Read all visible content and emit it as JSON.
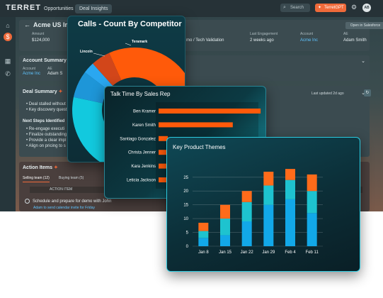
{
  "app": {
    "logo": "TERRET",
    "tabs": [
      "Opportunities",
      "Deal Insights"
    ],
    "search_label": "Search",
    "gpt_label": "TerretGPT",
    "avatar_initials": "AB"
  },
  "account": {
    "title": "Acme US Inc N",
    "fields": [
      {
        "label": "Amount",
        "value": "$124,000"
      },
      {
        "label": "Last Engagement",
        "value": "2 weeks ago"
      },
      {
        "label": "Account",
        "value": "Acme Inc"
      },
      {
        "label": "AE",
        "value": "Adam Smith"
      }
    ],
    "stage_fragment": "mo / Tech Validation",
    "open_salesforce": "Open in Salesforce"
  },
  "account_summary": {
    "title": "Account Summary",
    "labels": [
      "Account",
      "AE"
    ],
    "values": [
      "Acme Inc",
      "Adam S"
    ]
  },
  "deal_summary": {
    "title": "Deal Summary",
    "bullets": [
      "Deal stalled without",
      "Key discovery quest"
    ],
    "next_steps_title": "Next Steps Identified",
    "next_steps": [
      "Re-engage executi",
      "Finalize outstanding",
      "Provide a clear impl",
      "Align on pricing to s"
    ],
    "updated": "Last updated 2d ago"
  },
  "action_items": {
    "title": "Action Items",
    "tabs": [
      "Selling team (12)",
      "Buying team (5)"
    ],
    "column": "ACTION ITEM",
    "rows": [
      {
        "text": "Schedule and prepare for demo with John",
        "sub": "Adam to send calendar invite for Friday"
      }
    ]
  },
  "colors": {
    "orange": "#ff5a0a",
    "orange_dark": "#d2461a",
    "cyan": "#12c9de",
    "blue": "#0e7fd1",
    "light_blue": "#2aa7f0",
    "teal_mid": "#1db5c8"
  },
  "chart_data": [
    {
      "type": "pie",
      "title": "Calls - Count By Competitor",
      "labels": [
        "Teramark",
        "Lincoln",
        "",
        "",
        ""
      ],
      "values": [
        44,
        41,
        7,
        3,
        5
      ],
      "colors": [
        "#ff5a0a",
        "#12c9de",
        "#1e96d8",
        "#2aa7f0",
        "#d2461a"
      ],
      "donut": true
    },
    {
      "type": "bar",
      "orientation": "horizontal",
      "title": "Talk Time By Sales Rep",
      "categories": [
        "Ben Kramer",
        "Karen Smith",
        "Santiago Gonzalez",
        "Christa Jenner",
        "Kara Jenkins",
        "Leticia Jackson"
      ],
      "values": [
        11,
        8,
        1,
        1,
        1,
        1
      ],
      "xtick_visible": "8",
      "color": "#ff5a0a"
    },
    {
      "type": "bar",
      "stacked": true,
      "title": "Key Product Themes",
      "categories": [
        "Jan 8",
        "Jan 15",
        "Jan 22",
        "Jan 29",
        "Feb 4",
        "Feb 11"
      ],
      "series": [
        {
          "values": [
            3,
            4,
            9,
            15,
            17,
            12
          ]
        },
        {
          "values": [
            2.5,
            6,
            7,
            7,
            7,
            8
          ]
        },
        {
          "values": [
            3,
            5,
            4,
            5,
            4,
            6
          ]
        }
      ],
      "colors": [
        "#12a8e8",
        "#1ec3cf",
        "#ff6b1a"
      ],
      "ylim": [
        0,
        27
      ],
      "yticks": [
        0,
        5,
        10,
        15,
        20,
        25
      ],
      "grid": true
    }
  ]
}
